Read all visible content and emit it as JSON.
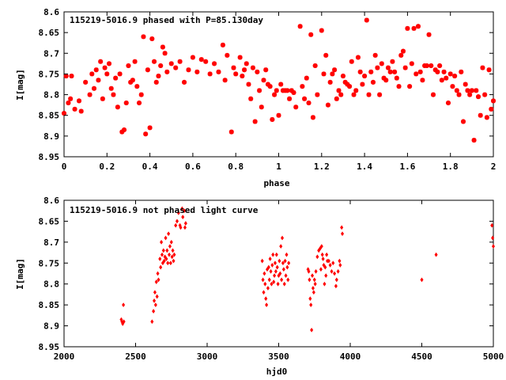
{
  "colors": {
    "points": "#ff0000",
    "axes": "#000000",
    "background": "#ffffff"
  },
  "chart_data": [
    {
      "type": "scatter",
      "title": "115219-5016.9 phased with P=85.130day",
      "xlabel": "phase",
      "ylabel": "I[mag]",
      "xlim": [
        0,
        2
      ],
      "ylim": [
        8.6,
        8.95
      ],
      "y_inverted": true,
      "x_ticks": [
        0,
        0.2,
        0.4,
        0.6,
        0.8,
        1,
        1.2,
        1.4,
        1.6,
        1.8,
        2
      ],
      "x_tick_labels": [
        "0",
        "0.2",
        "0.4",
        "0.6",
        "0.8",
        "1",
        "1.2",
        "1.4",
        "1.6",
        "1.8",
        "2"
      ],
      "y_ticks": [
        8.6,
        8.65,
        8.7,
        8.75,
        8.8,
        8.85,
        8.9,
        8.95
      ],
      "y_tick_labels": [
        "8.6",
        "8.65",
        "8.7",
        "8.75",
        "8.8",
        "8.85",
        "8.9",
        "8.95"
      ],
      "marker": "star",
      "points": [
        [
          0.0,
          8.845
        ],
        [
          0.01,
          8.755
        ],
        [
          0.02,
          8.82
        ],
        [
          0.03,
          8.81
        ],
        [
          0.035,
          8.755
        ],
        [
          0.05,
          8.835
        ],
        [
          0.07,
          8.815
        ],
        [
          0.08,
          8.84
        ],
        [
          0.1,
          8.77
        ],
        [
          0.12,
          8.8
        ],
        [
          0.13,
          8.75
        ],
        [
          0.14,
          8.785
        ],
        [
          0.15,
          8.74
        ],
        [
          0.16,
          8.765
        ],
        [
          0.17,
          8.72
        ],
        [
          0.18,
          8.81
        ],
        [
          0.19,
          8.735
        ],
        [
          0.2,
          8.75
        ],
        [
          0.21,
          8.725
        ],
        [
          0.22,
          8.785
        ],
        [
          0.23,
          8.8
        ],
        [
          0.24,
          8.76
        ],
        [
          0.25,
          8.83
        ],
        [
          0.26,
          8.75
        ],
        [
          0.27,
          8.89
        ],
        [
          0.28,
          8.885
        ],
        [
          0.29,
          8.82
        ],
        [
          0.3,
          8.73
        ],
        [
          0.31,
          8.77
        ],
        [
          0.32,
          8.765
        ],
        [
          0.33,
          8.72
        ],
        [
          0.34,
          8.78
        ],
        [
          0.35,
          8.82
        ],
        [
          0.36,
          8.8
        ],
        [
          0.37,
          8.66
        ],
        [
          0.38,
          8.895
        ],
        [
          0.39,
          8.74
        ],
        [
          0.4,
          8.88
        ],
        [
          0.41,
          8.665
        ],
        [
          0.42,
          8.72
        ],
        [
          0.43,
          8.77
        ],
        [
          0.44,
          8.755
        ],
        [
          0.45,
          8.73
        ],
        [
          0.46,
          8.685
        ],
        [
          0.47,
          8.7
        ],
        [
          0.48,
          8.745
        ],
        [
          0.5,
          8.725
        ],
        [
          0.52,
          8.735
        ],
        [
          0.54,
          8.72
        ],
        [
          0.56,
          8.77
        ],
        [
          0.58,
          8.74
        ],
        [
          0.6,
          8.71
        ],
        [
          0.62,
          8.745
        ],
        [
          0.64,
          8.715
        ],
        [
          0.66,
          8.72
        ],
        [
          0.68,
          8.75
        ],
        [
          0.7,
          8.725
        ],
        [
          0.72,
          8.745
        ],
        [
          0.74,
          8.68
        ],
        [
          0.75,
          8.765
        ],
        [
          0.76,
          8.705
        ],
        [
          0.78,
          8.89
        ],
        [
          0.79,
          8.735
        ],
        [
          0.8,
          8.75
        ],
        [
          0.82,
          8.71
        ],
        [
          0.83,
          8.755
        ],
        [
          0.84,
          8.74
        ],
        [
          0.85,
          8.725
        ],
        [
          0.86,
          8.775
        ],
        [
          0.87,
          8.81
        ],
        [
          0.88,
          8.735
        ],
        [
          0.89,
          8.865
        ],
        [
          0.9,
          8.745
        ],
        [
          0.91,
          8.79
        ],
        [
          0.92,
          8.83
        ],
        [
          0.93,
          8.765
        ],
        [
          0.94,
          8.74
        ],
        [
          0.95,
          8.775
        ],
        [
          0.96,
          8.78
        ],
        [
          0.97,
          8.86
        ],
        [
          0.98,
          8.8
        ],
        [
          0.99,
          8.79
        ],
        [
          1.0,
          8.85
        ],
        [
          1.01,
          8.775
        ],
        [
          1.02,
          8.79
        ],
        [
          1.03,
          8.79
        ],
        [
          1.04,
          8.79
        ],
        [
          1.05,
          8.81
        ],
        [
          1.06,
          8.79
        ],
        [
          1.07,
          8.795
        ],
        [
          1.08,
          8.83
        ],
        [
          1.1,
          8.635
        ],
        [
          1.11,
          8.78
        ],
        [
          1.12,
          8.81
        ],
        [
          1.13,
          8.76
        ],
        [
          1.14,
          8.82
        ],
        [
          1.15,
          8.655
        ],
        [
          1.16,
          8.855
        ],
        [
          1.17,
          8.73
        ],
        [
          1.18,
          8.8
        ],
        [
          1.2,
          8.645
        ],
        [
          1.21,
          8.75
        ],
        [
          1.22,
          8.705
        ],
        [
          1.23,
          8.825
        ],
        [
          1.24,
          8.77
        ],
        [
          1.25,
          8.75
        ],
        [
          1.26,
          8.74
        ],
        [
          1.27,
          8.81
        ],
        [
          1.28,
          8.79
        ],
        [
          1.29,
          8.8
        ],
        [
          1.3,
          8.755
        ],
        [
          1.31,
          8.77
        ],
        [
          1.32,
          8.775
        ],
        [
          1.33,
          8.78
        ],
        [
          1.34,
          8.72
        ],
        [
          1.35,
          8.8
        ],
        [
          1.36,
          8.79
        ],
        [
          1.37,
          8.71
        ],
        [
          1.38,
          8.745
        ],
        [
          1.39,
          8.775
        ],
        [
          1.4,
          8.755
        ],
        [
          1.41,
          8.62
        ],
        [
          1.42,
          8.8
        ],
        [
          1.43,
          8.745
        ],
        [
          1.44,
          8.77
        ],
        [
          1.45,
          8.705
        ],
        [
          1.46,
          8.735
        ],
        [
          1.47,
          8.8
        ],
        [
          1.48,
          8.725
        ],
        [
          1.49,
          8.76
        ],
        [
          1.5,
          8.765
        ],
        [
          1.51,
          8.735
        ],
        [
          1.52,
          8.745
        ],
        [
          1.53,
          8.72
        ],
        [
          1.54,
          8.745
        ],
        [
          1.55,
          8.76
        ],
        [
          1.56,
          8.78
        ],
        [
          1.57,
          8.705
        ],
        [
          1.58,
          8.695
        ],
        [
          1.59,
          8.735
        ],
        [
          1.6,
          8.64
        ],
        [
          1.61,
          8.78
        ],
        [
          1.62,
          8.725
        ],
        [
          1.63,
          8.64
        ],
        [
          1.64,
          8.75
        ],
        [
          1.65,
          8.635
        ],
        [
          1.66,
          8.745
        ],
        [
          1.67,
          8.765
        ],
        [
          1.68,
          8.73
        ],
        [
          1.69,
          8.73
        ],
        [
          1.7,
          8.655
        ],
        [
          1.71,
          8.73
        ],
        [
          1.72,
          8.8
        ],
        [
          1.73,
          8.74
        ],
        [
          1.74,
          8.745
        ],
        [
          1.75,
          8.73
        ],
        [
          1.76,
          8.765
        ],
        [
          1.77,
          8.745
        ],
        [
          1.78,
          8.76
        ],
        [
          1.79,
          8.82
        ],
        [
          1.8,
          8.75
        ],
        [
          1.81,
          8.78
        ],
        [
          1.82,
          8.755
        ],
        [
          1.83,
          8.79
        ],
        [
          1.84,
          8.8
        ],
        [
          1.85,
          8.745
        ],
        [
          1.86,
          8.865
        ],
        [
          1.87,
          8.775
        ],
        [
          1.88,
          8.79
        ],
        [
          1.89,
          8.8
        ],
        [
          1.9,
          8.79
        ],
        [
          1.91,
          8.91
        ],
        [
          1.92,
          8.79
        ],
        [
          1.93,
          8.805
        ],
        [
          1.94,
          8.85
        ],
        [
          1.95,
          8.735
        ],
        [
          1.96,
          8.8
        ],
        [
          1.97,
          8.855
        ],
        [
          1.98,
          8.74
        ],
        [
          1.99,
          8.835
        ],
        [
          2.0,
          8.815
        ]
      ]
    },
    {
      "type": "scatter",
      "title": "115219-5016.9 not phased light curve",
      "xlabel": "hjd0",
      "ylabel": "I[mag]",
      "xlim": [
        2000,
        5000
      ],
      "ylim": [
        8.6,
        8.95
      ],
      "y_inverted": true,
      "x_ticks": [
        2000,
        2500,
        3000,
        3500,
        4000,
        4500,
        5000
      ],
      "x_tick_labels": [
        "2000",
        "2500",
        "3000",
        "3500",
        "4000",
        "4500",
        "5000"
      ],
      "y_ticks": [
        8.6,
        8.65,
        8.7,
        8.75,
        8.8,
        8.85,
        8.9,
        8.95
      ],
      "y_tick_labels": [
        "8.6",
        "8.65",
        "8.7",
        "8.75",
        "8.8",
        "8.85",
        "8.9",
        "8.95"
      ],
      "marker": "diamond",
      "points": [
        [
          2400,
          8.885
        ],
        [
          2405,
          8.89
        ],
        [
          2410,
          8.895
        ],
        [
          2415,
          8.85
        ],
        [
          2418,
          8.89
        ],
        [
          2615,
          8.89
        ],
        [
          2625,
          8.865
        ],
        [
          2630,
          8.84
        ],
        [
          2635,
          8.82
        ],
        [
          2640,
          8.85
        ],
        [
          2645,
          8.795
        ],
        [
          2650,
          8.83
        ],
        [
          2655,
          8.775
        ],
        [
          2660,
          8.79
        ],
        [
          2670,
          8.74
        ],
        [
          2675,
          8.76
        ],
        [
          2680,
          8.7
        ],
        [
          2685,
          8.73
        ],
        [
          2690,
          8.75
        ],
        [
          2695,
          8.72
        ],
        [
          2700,
          8.745
        ],
        [
          2705,
          8.735
        ],
        [
          2710,
          8.69
        ],
        [
          2715,
          8.74
        ],
        [
          2720,
          8.72
        ],
        [
          2725,
          8.75
        ],
        [
          2730,
          8.68
        ],
        [
          2735,
          8.73
        ],
        [
          2740,
          8.71
        ],
        [
          2745,
          8.75
        ],
        [
          2750,
          8.7
        ],
        [
          2755,
          8.735
        ],
        [
          2760,
          8.72
        ],
        [
          2765,
          8.745
        ],
        [
          2770,
          8.73
        ],
        [
          2780,
          8.66
        ],
        [
          2790,
          8.65
        ],
        [
          2800,
          8.63
        ],
        [
          2810,
          8.66
        ],
        [
          2815,
          8.665
        ],
        [
          2825,
          8.62
        ],
        [
          2830,
          8.64
        ],
        [
          2840,
          8.625
        ],
        [
          2845,
          8.665
        ],
        [
          2850,
          8.655
        ],
        [
          3385,
          8.745
        ],
        [
          3390,
          8.79
        ],
        [
          3395,
          8.82
        ],
        [
          3400,
          8.775
        ],
        [
          3405,
          8.8
        ],
        [
          3410,
          8.835
        ],
        [
          3415,
          8.85
        ],
        [
          3420,
          8.765
        ],
        [
          3425,
          8.81
        ],
        [
          3430,
          8.76
        ],
        [
          3435,
          8.79
        ],
        [
          3440,
          8.74
        ],
        [
          3445,
          8.77
        ],
        [
          3450,
          8.8
        ],
        [
          3455,
          8.755
        ],
        [
          3460,
          8.73
        ],
        [
          3465,
          8.795
        ],
        [
          3470,
          8.78
        ],
        [
          3475,
          8.75
        ],
        [
          3480,
          8.77
        ],
        [
          3485,
          8.73
        ],
        [
          3490,
          8.76
        ],
        [
          3495,
          8.8
        ],
        [
          3500,
          8.78
        ],
        [
          3505,
          8.745
        ],
        [
          3510,
          8.775
        ],
        [
          3515,
          8.71
        ],
        [
          3520,
          8.79
        ],
        [
          3525,
          8.69
        ],
        [
          3530,
          8.75
        ],
        [
          3535,
          8.765
        ],
        [
          3540,
          8.8
        ],
        [
          3545,
          8.745
        ],
        [
          3550,
          8.78
        ],
        [
          3555,
          8.73
        ],
        [
          3560,
          8.76
        ],
        [
          3565,
          8.79
        ],
        [
          3570,
          8.75
        ],
        [
          3705,
          8.765
        ],
        [
          3710,
          8.77
        ],
        [
          3715,
          8.79
        ],
        [
          3720,
          8.835
        ],
        [
          3725,
          8.85
        ],
        [
          3730,
          8.91
        ],
        [
          3735,
          8.78
        ],
        [
          3740,
          8.81
        ],
        [
          3745,
          8.82
        ],
        [
          3750,
          8.79
        ],
        [
          3755,
          8.8
        ],
        [
          3760,
          8.77
        ],
        [
          3770,
          8.735
        ],
        [
          3780,
          8.72
        ],
        [
          3790,
          8.715
        ],
        [
          3795,
          8.765
        ],
        [
          3800,
          8.71
        ],
        [
          3805,
          8.73
        ],
        [
          3810,
          8.74
        ],
        [
          3815,
          8.755
        ],
        [
          3820,
          8.8
        ],
        [
          3825,
          8.76
        ],
        [
          3830,
          8.78
        ],
        [
          3835,
          8.73
        ],
        [
          3840,
          8.745
        ],
        [
          3850,
          8.745
        ],
        [
          3860,
          8.755
        ],
        [
          3870,
          8.77
        ],
        [
          3880,
          8.75
        ],
        [
          3890,
          8.775
        ],
        [
          3900,
          8.805
        ],
        [
          3905,
          8.79
        ],
        [
          3915,
          8.77
        ],
        [
          3925,
          8.745
        ],
        [
          3930,
          8.755
        ],
        [
          3940,
          8.665
        ],
        [
          3945,
          8.68
        ],
        [
          4500,
          8.79
        ],
        [
          4600,
          8.73
        ],
        [
          4990,
          8.66
        ],
        [
          4995,
          8.69
        ],
        [
          5000,
          8.71
        ]
      ]
    }
  ]
}
